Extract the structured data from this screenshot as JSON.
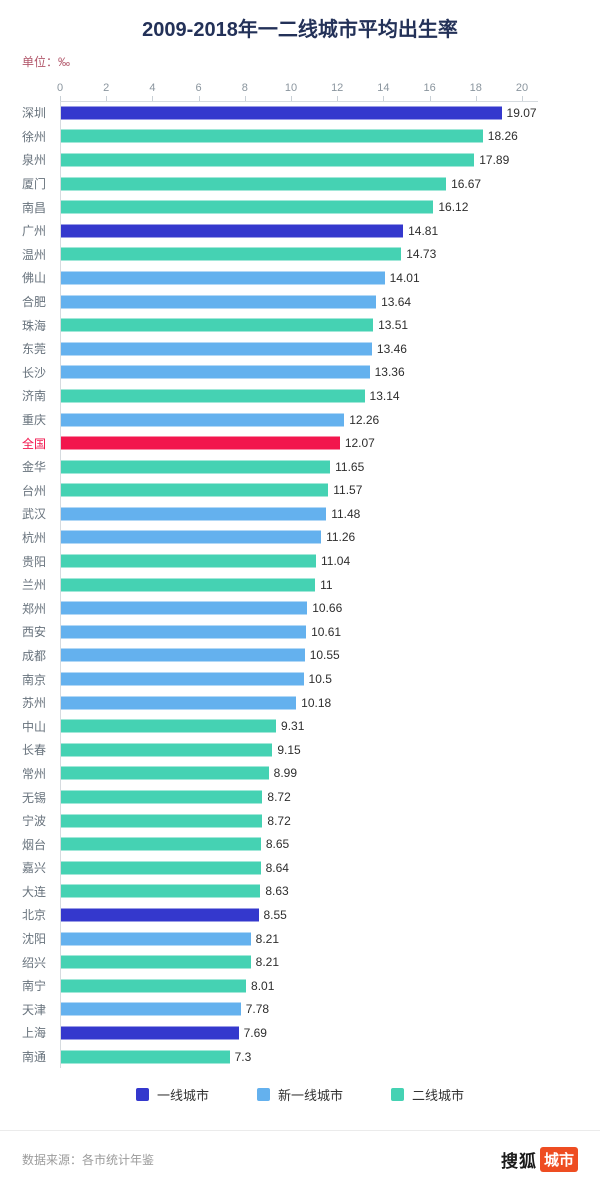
{
  "page": {
    "title": "2009-2018年一二线城市平均出生率",
    "unit_label": "单位：‰"
  },
  "chart_data": {
    "type": "bar",
    "orientation": "horizontal",
    "title": "2009-2018年一二线城市平均出生率",
    "unit": "‰",
    "xlim": [
      0,
      20
    ],
    "x_ticks": [
      0,
      2,
      4,
      6,
      8,
      10,
      12,
      14,
      16,
      18,
      20
    ],
    "grid": false,
    "legend_position": "bottom",
    "colors": {
      "tier1": "#3438cd",
      "new_tier1": "#64b1ee",
      "tier2": "#45d2b3",
      "national": "#f2164d"
    },
    "legend": [
      {
        "label": "一线城市",
        "tier": "tier1"
      },
      {
        "label": "新一线城市",
        "tier": "new_tier1"
      },
      {
        "label": "二线城市",
        "tier": "tier2"
      }
    ],
    "rows": [
      {
        "city": "深圳",
        "value": 19.07,
        "display": "19.07",
        "tier": "tier1"
      },
      {
        "city": "徐州",
        "value": 18.26,
        "display": "18.26",
        "tier": "tier2"
      },
      {
        "city": "泉州",
        "value": 17.89,
        "display": "17.89",
        "tier": "tier2"
      },
      {
        "city": "厦门",
        "value": 16.67,
        "display": "16.67",
        "tier": "tier2"
      },
      {
        "city": "南昌",
        "value": 16.12,
        "display": "16.12",
        "tier": "tier2"
      },
      {
        "city": "广州",
        "value": 14.81,
        "display": "14.81",
        "tier": "tier1"
      },
      {
        "city": "温州",
        "value": 14.73,
        "display": "14.73",
        "tier": "tier2"
      },
      {
        "city": "佛山",
        "value": 14.01,
        "display": "14.01",
        "tier": "new_tier1"
      },
      {
        "city": "合肥",
        "value": 13.64,
        "display": "13.64",
        "tier": "new_tier1"
      },
      {
        "city": "珠海",
        "value": 13.51,
        "display": "13.51",
        "tier": "tier2"
      },
      {
        "city": "东莞",
        "value": 13.46,
        "display": "13.46",
        "tier": "new_tier1"
      },
      {
        "city": "长沙",
        "value": 13.36,
        "display": "13.36",
        "tier": "new_tier1"
      },
      {
        "city": "济南",
        "value": 13.14,
        "display": "13.14",
        "tier": "tier2"
      },
      {
        "city": "重庆",
        "value": 12.26,
        "display": "12.26",
        "tier": "new_tier1"
      },
      {
        "city": "全国",
        "value": 12.07,
        "display": "12.07",
        "tier": "national"
      },
      {
        "city": "金华",
        "value": 11.65,
        "display": "11.65",
        "tier": "tier2"
      },
      {
        "city": "台州",
        "value": 11.57,
        "display": "11.57",
        "tier": "tier2"
      },
      {
        "city": "武汉",
        "value": 11.48,
        "display": "11.48",
        "tier": "new_tier1"
      },
      {
        "city": "杭州",
        "value": 11.26,
        "display": "11.26",
        "tier": "new_tier1"
      },
      {
        "city": "贵阳",
        "value": 11.04,
        "display": "11.04",
        "tier": "tier2"
      },
      {
        "city": "兰州",
        "value": 11,
        "display": "11",
        "tier": "tier2"
      },
      {
        "city": "郑州",
        "value": 10.66,
        "display": "10.66",
        "tier": "new_tier1"
      },
      {
        "city": "西安",
        "value": 10.61,
        "display": "10.61",
        "tier": "new_tier1"
      },
      {
        "city": "成都",
        "value": 10.55,
        "display": "10.55",
        "tier": "new_tier1"
      },
      {
        "city": "南京",
        "value": 10.5,
        "display": "10.5",
        "tier": "new_tier1"
      },
      {
        "city": "苏州",
        "value": 10.18,
        "display": "10.18",
        "tier": "new_tier1"
      },
      {
        "city": "中山",
        "value": 9.31,
        "display": "9.31",
        "tier": "tier2"
      },
      {
        "city": "长春",
        "value": 9.15,
        "display": "9.15",
        "tier": "tier2"
      },
      {
        "city": "常州",
        "value": 8.99,
        "display": "8.99",
        "tier": "tier2"
      },
      {
        "city": "无锡",
        "value": 8.72,
        "display": "8.72",
        "tier": "tier2"
      },
      {
        "city": "宁波",
        "value": 8.72,
        "display": "8.72",
        "tier": "tier2"
      },
      {
        "city": "烟台",
        "value": 8.65,
        "display": "8.65",
        "tier": "tier2"
      },
      {
        "city": "嘉兴",
        "value": 8.64,
        "display": "8.64",
        "tier": "tier2"
      },
      {
        "city": "大连",
        "value": 8.63,
        "display": "8.63",
        "tier": "tier2"
      },
      {
        "city": "北京",
        "value": 8.55,
        "display": "8.55",
        "tier": "tier1"
      },
      {
        "city": "沈阳",
        "value": 8.21,
        "display": "8.21",
        "tier": "new_tier1"
      },
      {
        "city": "绍兴",
        "value": 8.21,
        "display": "8.21",
        "tier": "tier2"
      },
      {
        "city": "南宁",
        "value": 8.01,
        "display": "8.01",
        "tier": "tier2"
      },
      {
        "city": "天津",
        "value": 7.78,
        "display": "7.78",
        "tier": "new_tier1"
      },
      {
        "city": "上海",
        "value": 7.69,
        "display": "7.69",
        "tier": "tier1"
      },
      {
        "city": "南通",
        "value": 7.3,
        "display": "7.3",
        "tier": "tier2"
      }
    ]
  },
  "footer": {
    "source": "数据来源：各市统计年鉴",
    "brand_text": "搜狐",
    "brand_badge": "城市",
    "brand_color": "#ee4d22"
  }
}
